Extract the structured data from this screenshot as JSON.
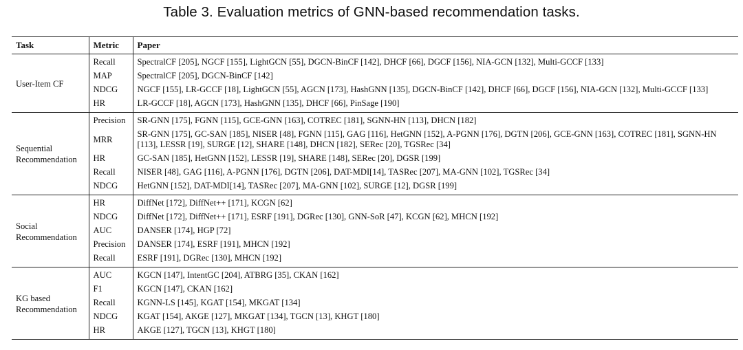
{
  "caption": "Table 3.  Evaluation metrics of GNN-based recommendation tasks.",
  "headers": {
    "task": "Task",
    "metric": "Metric",
    "paper": "Paper"
  },
  "groups": [
    {
      "task": "User-Item CF",
      "rows": [
        {
          "metric": "Recall",
          "papers": "SpectralCF [205], NGCF [155], LightGCN [55], DGCN-BinCF [142], DHCF [66], DGCF [156], NIA-GCN [132], Multi-GCCF [133]"
        },
        {
          "metric": "MAP",
          "papers": "SpectralCF [205], DGCN-BinCF [142]"
        },
        {
          "metric": "NDCG",
          "papers": "NGCF [155], LR-GCCF [18], LightGCN [55], AGCN [173], HashGNN [135], DGCN-BinCF [142], DHCF [66], DGCF [156], NIA-GCN [132], Multi-GCCF [133]"
        },
        {
          "metric": "HR",
          "papers": "LR-GCCF [18], AGCN [173], HashGNN [135], DHCF [66], PinSage [190]"
        }
      ]
    },
    {
      "task": "Sequential Recommendation",
      "rows": [
        {
          "metric": "Precision",
          "papers": "SR-GNN [175], FGNN [115], GCE-GNN [163], COTREC [181], SGNN-HN [113], DHCN [182]"
        },
        {
          "metric": "MRR",
          "papers": "SR-GNN [175], GC-SAN [185], NISER [48], FGNN [115], GAG [116], HetGNN [152], A-PGNN [176], DGTN [206], GCE-GNN [163], COTREC [181], SGNN-HN [113], LESSR [19], SURGE [12], SHARE [148], DHCN [182], SERec [20], TGSRec [34]"
        },
        {
          "metric": "HR",
          "papers": "GC-SAN [185], HetGNN [152], LESSR [19], SHARE [148], SERec [20], DGSR [199]"
        },
        {
          "metric": "Recall",
          "papers": "NISER [48], GAG [116], A-PGNN [176], DGTN [206], DAT-MDI[14], TASRec [207], MA-GNN [102], TGSRec [34]"
        },
        {
          "metric": "NDCG",
          "papers": "HetGNN [152], DAT-MDI[14], TASRec [207], MA-GNN [102], SURGE [12], DGSR [199]"
        }
      ]
    },
    {
      "task": "Social Recommendation",
      "rows": [
        {
          "metric": "HR",
          "papers": "DiffNet [172], DiffNet++ [171], KCGN [62]"
        },
        {
          "metric": "NDCG",
          "papers": "DiffNet [172], DiffNet++ [171], ESRF [191], DGRec [130], GNN-SoR [47], KCGN [62], MHCN [192]"
        },
        {
          "metric": "AUC",
          "papers": "DANSER [174], HGP [72]"
        },
        {
          "metric": "Precision",
          "papers": "DANSER [174], ESRF [191], MHCN [192]"
        },
        {
          "metric": "Recall",
          "papers": "ESRF [191], DGRec [130], MHCN [192]"
        }
      ]
    },
    {
      "task": "KG based Recommendation",
      "rows": [
        {
          "metric": "AUC",
          "papers": "KGCN [147], IntentGC [204], ATBRG [35], CKAN [162]"
        },
        {
          "metric": "F1",
          "papers": "KGCN [147], CKAN [162]"
        },
        {
          "metric": "Recall",
          "papers": "KGNN-LS [145], KGAT [154], MKGAT [134]"
        },
        {
          "metric": "NDCG",
          "papers": "KGAT [154], AKGE [127], MKGAT [134], TGCN [13], KHGT [180]"
        },
        {
          "metric": "HR",
          "papers": "AKGE [127], TGCN [13], KHGT [180]"
        }
      ]
    }
  ]
}
